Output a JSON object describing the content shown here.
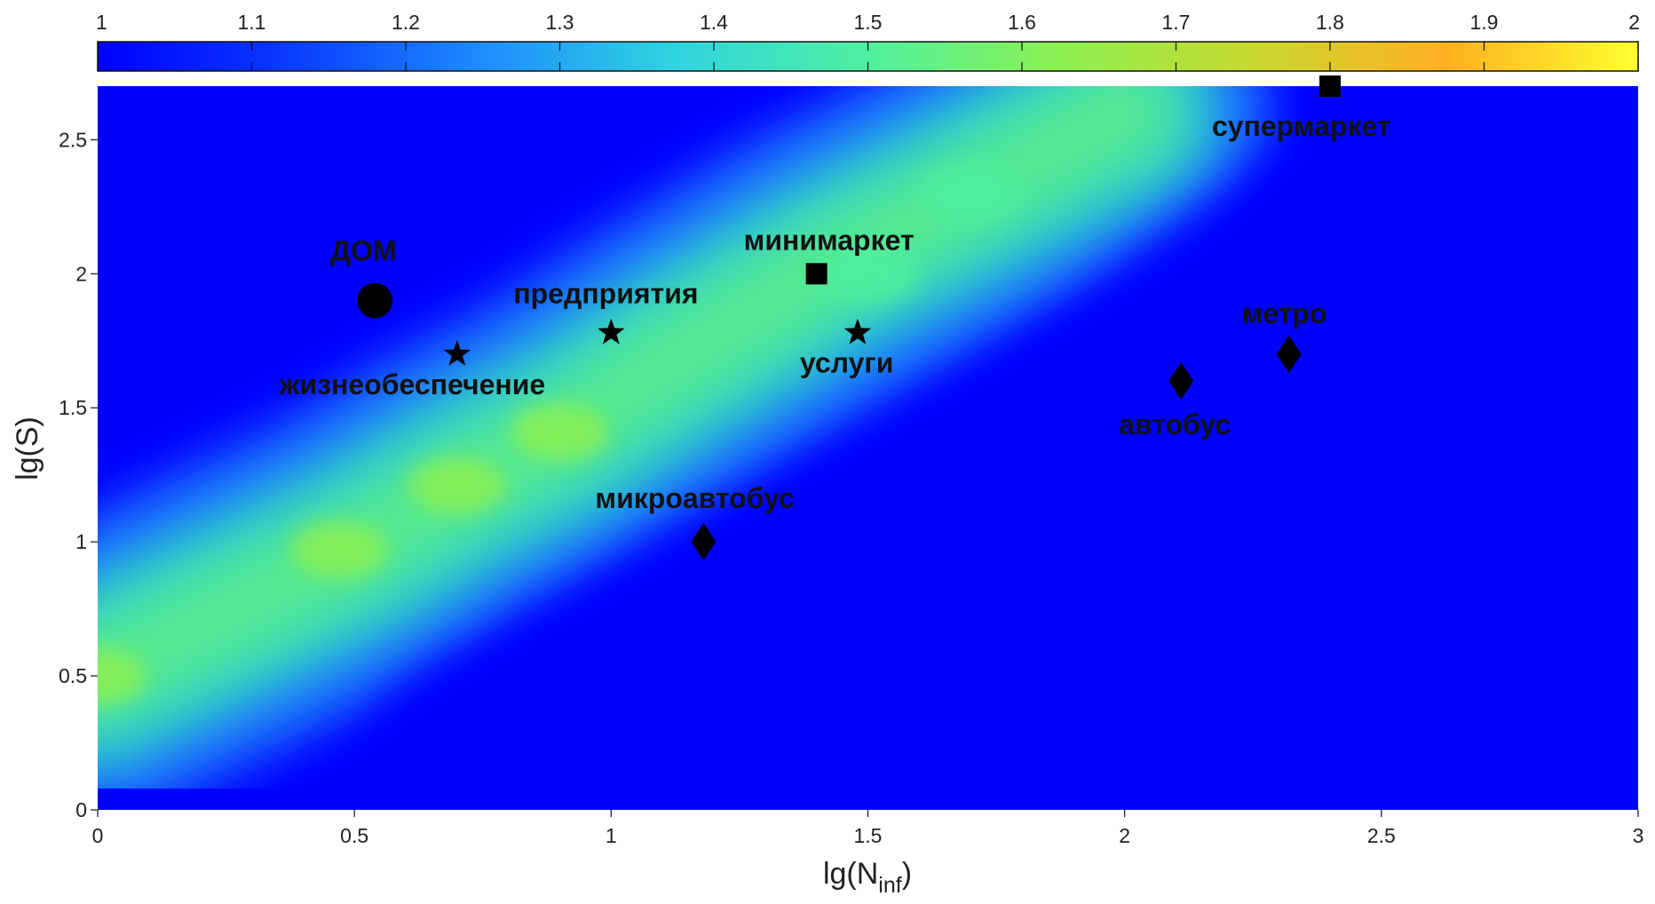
{
  "chart_data": {
    "type": "heatmap",
    "xlabel": "lg(N",
    "xlabel_sub": "inf",
    "xlabel_close": ")",
    "ylabel": "lg(S)",
    "xlim": [
      0,
      3
    ],
    "ylim": [
      0,
      2.7
    ],
    "x_ticks": [
      0,
      0.5,
      1,
      1.5,
      2,
      2.5,
      3
    ],
    "y_ticks": [
      0,
      0.5,
      1,
      1.5,
      2,
      2.5
    ],
    "x_tick_labels": [
      "0",
      "0.5",
      "1",
      "1.5",
      "2",
      "2.5",
      "3"
    ],
    "y_tick_labels": [
      "0",
      "0.5",
      "1",
      "1.5",
      "2",
      "2.5"
    ],
    "colorbar": {
      "range": [
        1,
        2
      ],
      "ticks": [
        1,
        1.1,
        1.2,
        1.3,
        1.4,
        1.5,
        1.6,
        1.7,
        1.8,
        1.9,
        2
      ],
      "tick_labels": [
        "1",
        "1.1",
        "1.2",
        "1.3",
        "1.4",
        "1.5",
        "1.6",
        "1.7",
        "1.8",
        "1.9",
        "2"
      ],
      "colormap": [
        "#0000ff",
        "#0a3cff",
        "#1e8cff",
        "#30d4e0",
        "#50f0a0",
        "#8cf050",
        "#c8d830",
        "#ffb020",
        "#ffff30"
      ]
    },
    "field": {
      "background_value": 1.0,
      "ridge": [
        [
          0,
          0.5
        ],
        [
          0.5,
          0.97
        ],
        [
          0.7,
          1.2
        ],
        [
          0.9,
          1.4
        ],
        [
          1.1,
          1.65
        ],
        [
          1.4,
          2.0
        ],
        [
          1.7,
          2.3
        ],
        [
          2.0,
          2.6
        ]
      ],
      "peaks": [
        {
          "x": 0,
          "y": 0.5,
          "value": 1.6
        },
        {
          "x": 0.47,
          "y": 0.97,
          "value": 1.68
        },
        {
          "x": 0.7,
          "y": 1.21,
          "value": 1.65
        },
        {
          "x": 0.9,
          "y": 1.41,
          "value": 1.62
        },
        {
          "x": 1.5,
          "y": 2.0,
          "value": 1.55
        },
        {
          "x": 1.7,
          "y": 2.3,
          "value": 1.5
        }
      ]
    },
    "points": [
      {
        "label": "ДОМ",
        "x": 0.54,
        "y": 1.9,
        "marker": "circle"
      },
      {
        "label": "жизнеобеспечение",
        "x": 0.7,
        "y": 1.7,
        "marker": "star"
      },
      {
        "label": "предприятия",
        "x": 1.0,
        "y": 1.78,
        "marker": "star"
      },
      {
        "label": "услуги",
        "x": 1.48,
        "y": 1.78,
        "marker": "star"
      },
      {
        "label": "минимаркет",
        "x": 1.4,
        "y": 2.0,
        "marker": "square"
      },
      {
        "label": "супермаркет",
        "x": 2.4,
        "y": 2.7,
        "marker": "square"
      },
      {
        "label": "микроавтобус",
        "x": 1.18,
        "y": 1.0,
        "marker": "diamond"
      },
      {
        "label": "автобус",
        "x": 2.11,
        "y": 1.6,
        "marker": "diamond"
      },
      {
        "label": "метро",
        "x": 2.32,
        "y": 1.7,
        "marker": "diamond"
      }
    ]
  }
}
